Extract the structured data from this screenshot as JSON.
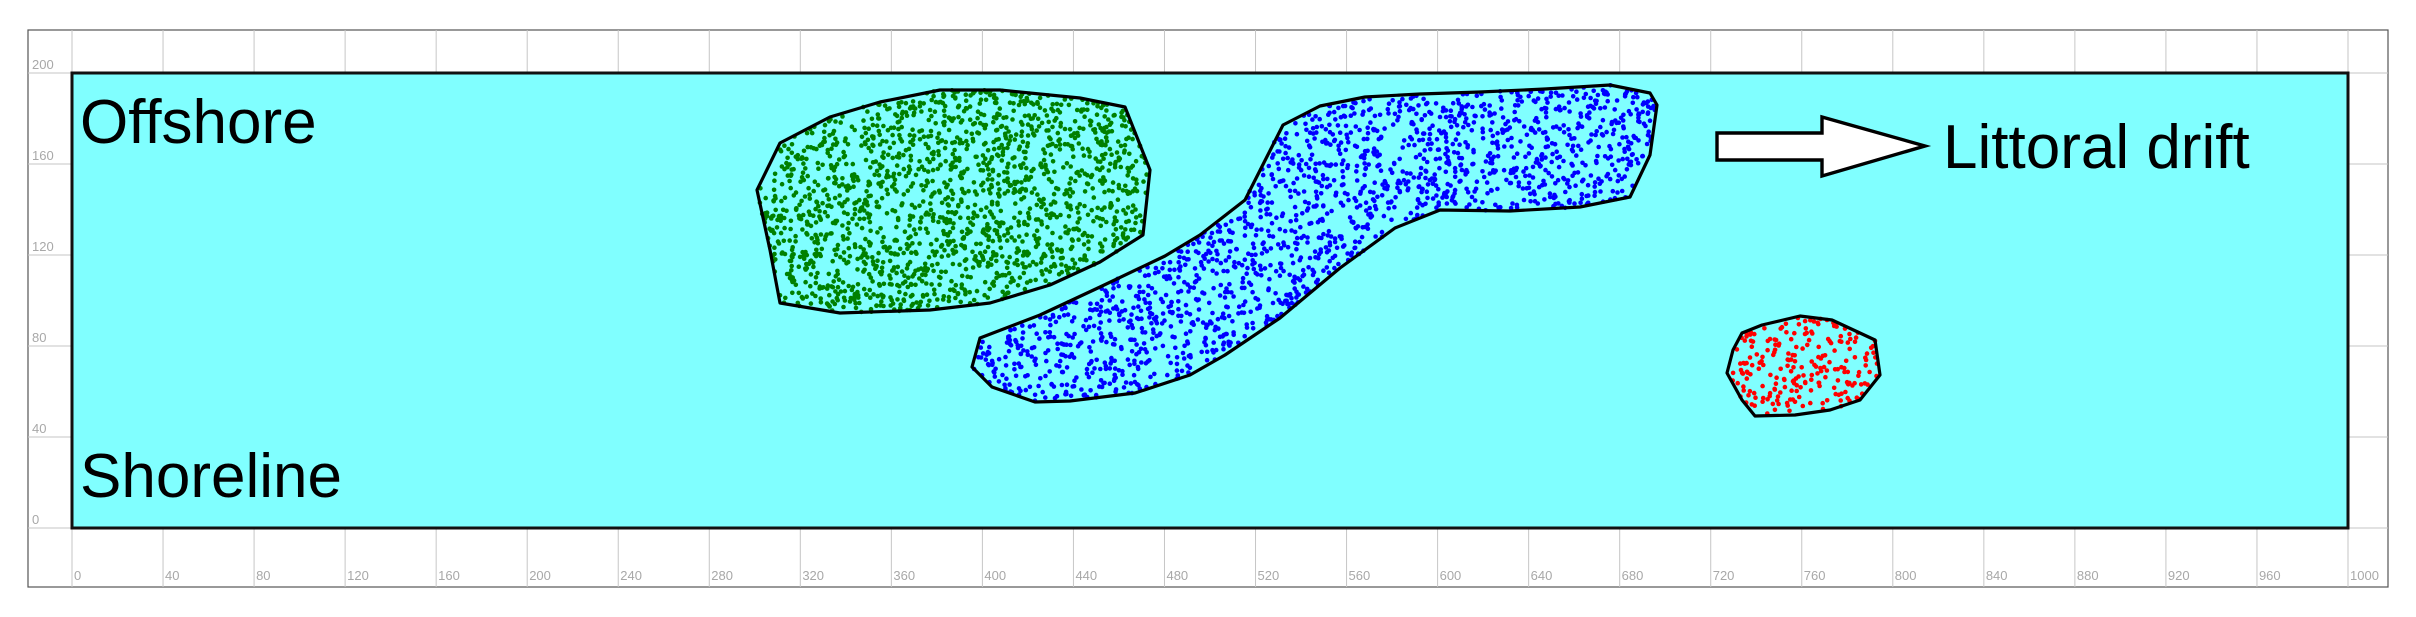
{
  "diagram": {
    "labels": {
      "offshore": "Offshore",
      "shoreline": "Shoreline",
      "drift": "Littoral drift"
    },
    "x_axis": {
      "min": 0,
      "max": 1000,
      "step": 40,
      "ticks": [
        "0",
        "40",
        "80",
        "120",
        "160",
        "200",
        "240",
        "280",
        "320",
        "360",
        "400",
        "440",
        "480",
        "520",
        "560",
        "600",
        "640",
        "680",
        "720",
        "760",
        "800",
        "840",
        "880",
        "920",
        "960",
        "1000"
      ]
    },
    "y_axis": {
      "min": 0,
      "max": 200,
      "step": 40,
      "ticks": [
        "0",
        "40",
        "80",
        "120",
        "160",
        "200"
      ]
    },
    "colors": {
      "water": "#80ffff",
      "group_green": "#008000",
      "group_blue": "#0000ff",
      "group_red": "#ff0000"
    }
  }
}
